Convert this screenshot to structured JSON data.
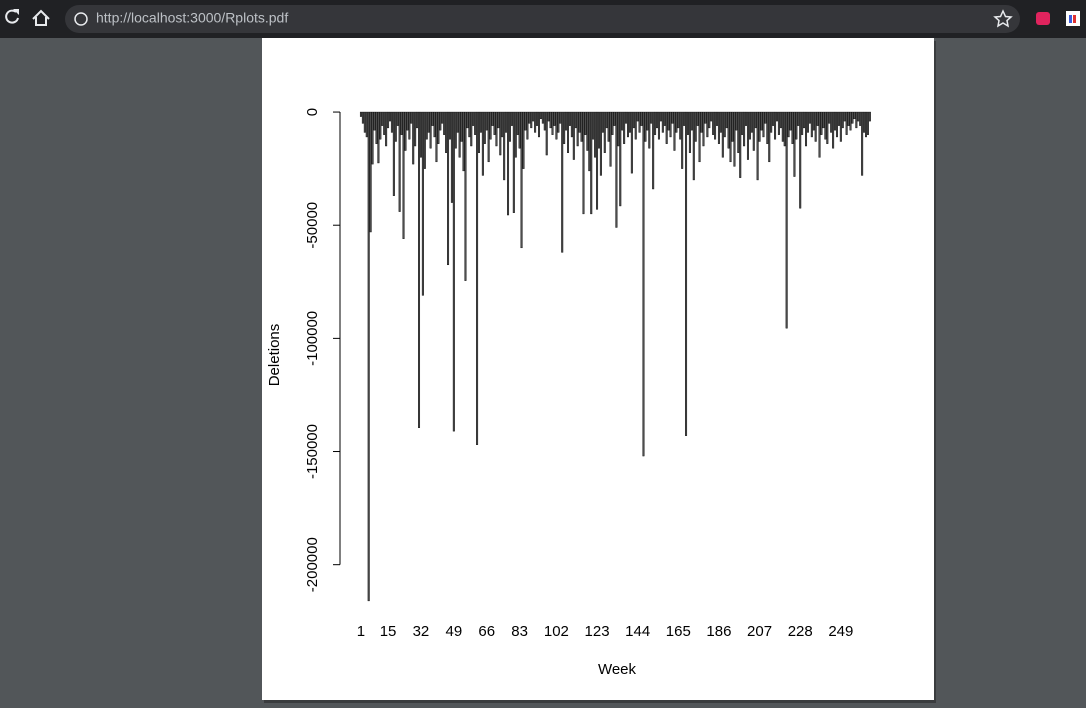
{
  "browser": {
    "url": "http://localhost:3000/Rplots.pdf"
  },
  "chart_data": {
    "type": "bar",
    "xlabel": "Week",
    "ylabel": "Deletions",
    "color": "#4d4d4d",
    "ylim": [
      -224000,
      4000
    ],
    "yticks": [
      0,
      -50000,
      -100000,
      -150000,
      -200000
    ],
    "grid": false,
    "categories": [
      "1",
      null,
      null,
      null,
      null,
      null,
      null,
      null,
      null,
      null,
      null,
      null,
      null,
      null,
      "15",
      null,
      null,
      null,
      null,
      null,
      null,
      null,
      null,
      null,
      null,
      null,
      null,
      null,
      null,
      null,
      null,
      "32",
      null,
      null,
      null,
      null,
      null,
      null,
      null,
      null,
      null,
      null,
      null,
      null,
      null,
      null,
      null,
      null,
      "49",
      null,
      null,
      null,
      null,
      null,
      null,
      null,
      null,
      null,
      null,
      null,
      null,
      null,
      null,
      null,
      null,
      "66",
      null,
      null,
      null,
      null,
      null,
      null,
      null,
      null,
      null,
      null,
      null,
      null,
      null,
      null,
      null,
      null,
      "83",
      null,
      null,
      null,
      null,
      null,
      null,
      null,
      null,
      null,
      null,
      null,
      null,
      null,
      null,
      null,
      null,
      null,
      null,
      "102",
      null,
      null,
      null,
      null,
      null,
      null,
      null,
      null,
      null,
      null,
      null,
      null,
      null,
      null,
      null,
      null,
      null,
      null,
      null,
      null,
      "123",
      null,
      null,
      null,
      null,
      null,
      null,
      null,
      null,
      null,
      null,
      null,
      null,
      null,
      null,
      null,
      null,
      null,
      null,
      null,
      null,
      "144",
      null,
      null,
      null,
      null,
      null,
      null,
      null,
      null,
      null,
      null,
      null,
      null,
      null,
      null,
      null,
      null,
      null,
      null,
      null,
      null,
      "165",
      null,
      null,
      null,
      null,
      null,
      null,
      null,
      null,
      null,
      null,
      null,
      null,
      null,
      null,
      null,
      null,
      null,
      null,
      null,
      null,
      "186",
      null,
      null,
      null,
      null,
      null,
      null,
      null,
      null,
      null,
      null,
      null,
      null,
      null,
      null,
      null,
      null,
      null,
      null,
      null,
      null,
      "207",
      null,
      null,
      null,
      null,
      null,
      null,
      null,
      null,
      null,
      null,
      null,
      null,
      null,
      null,
      null,
      null,
      null,
      null,
      null,
      null,
      "228",
      null,
      null,
      null,
      null,
      null,
      null,
      null,
      null,
      null,
      null,
      null,
      null,
      null,
      null,
      null,
      null,
      null,
      null,
      null,
      null,
      "249",
      null,
      null,
      null,
      null,
      null,
      null,
      null,
      null,
      null,
      null,
      null,
      null,
      null,
      null,
      null
    ],
    "values": [
      -2000,
      -5000,
      -9000,
      -11000,
      -216000,
      -53000,
      -23000,
      -8000,
      -14000,
      -22500,
      -12000,
      -6000,
      -10000,
      -15000,
      -7000,
      -4000,
      -9000,
      -37000,
      -13000,
      -6000,
      -44000,
      -10000,
      -56000,
      -17000,
      -8000,
      -12000,
      -5000,
      -23000,
      -15000,
      -7000,
      -139500,
      -20000,
      -81000,
      -25000,
      -12000,
      -9000,
      -16000,
      -6000,
      -11000,
      -22000,
      -14000,
      -8000,
      -5000,
      -10000,
      -18000,
      -67500,
      -12000,
      -40000,
      -141000,
      -16000,
      -9000,
      -20000,
      -13000,
      -26000,
      -74500,
      -7000,
      -11000,
      -15000,
      -6000,
      -10000,
      -147000,
      -18000,
      -9000,
      -28000,
      -14000,
      -8000,
      -22000,
      -12000,
      -6000,
      -10000,
      -15000,
      -7000,
      -19000,
      -11000,
      -30000,
      -9000,
      -45500,
      -13000,
      -6000,
      -44500,
      -20000,
      -10000,
      -16000,
      -60000,
      -25000,
      -8000,
      -12000,
      -5000,
      -7000,
      -4000,
      -9000,
      -6000,
      -11000,
      -3000,
      -5000,
      -8000,
      -19000,
      -4000,
      -7000,
      -10000,
      -6000,
      -12000,
      -9000,
      -5000,
      -62000,
      -14000,
      -8000,
      -18000,
      -6000,
      -11000,
      -21000,
      -7000,
      -15000,
      -9000,
      -13000,
      -45000,
      -10000,
      -17000,
      -26000,
      -45000,
      -12000,
      -20000,
      -43000,
      -16000,
      -28000,
      -9000,
      -18000,
      -7000,
      -13000,
      -24000,
      -10000,
      -6000,
      -51000,
      -15000,
      -41500,
      -8000,
      -14000,
      -5000,
      -11000,
      -9000,
      -27000,
      -7000,
      -12000,
      -4000,
      -9000,
      -6000,
      -152000,
      -13000,
      -8000,
      -16000,
      -5000,
      -34000,
      -10000,
      -7000,
      -12000,
      -4000,
      -9000,
      -6000,
      -14000,
      -8000,
      -11000,
      -5000,
      -17000,
      -9000,
      -7000,
      -12000,
      -25000,
      -6000,
      -143000,
      -10000,
      -18000,
      -8000,
      -30000,
      -13000,
      -6000,
      -22000,
      -9000,
      -15000,
      -5000,
      -11000,
      -7000,
      -4000,
      -10000,
      -12000,
      -6000,
      -14000,
      -9000,
      -20000,
      -11000,
      -7000,
      -16000,
      -22000,
      -13000,
      -24000,
      -8000,
      -18000,
      -29000,
      -10000,
      -15000,
      -6000,
      -21000,
      -12000,
      -9000,
      -17000,
      -7000,
      -30000,
      -13000,
      -8000,
      -11000,
      -5000,
      -14000,
      -22000,
      -9000,
      -6000,
      -12000,
      -4000,
      -10000,
      -7000,
      -13000,
      -15000,
      -95500,
      -11000,
      -8000,
      -14000,
      -28500,
      -12000,
      -6000,
      -42500,
      -10000,
      -7000,
      -15000,
      -9000,
      -5000,
      -11000,
      -8000,
      -13000,
      -6000,
      -20000,
      -10000,
      -7000,
      -12000,
      -14000,
      -5000,
      -9000,
      -16000,
      -8000,
      -11000,
      -6000,
      -13000,
      -7000,
      -4000,
      -10000,
      -6000,
      -8000,
      -5000,
      -3000,
      -7000,
      -4000,
      -6000,
      -28000,
      -9000,
      -11000,
      -10000,
      -4000
    ]
  }
}
